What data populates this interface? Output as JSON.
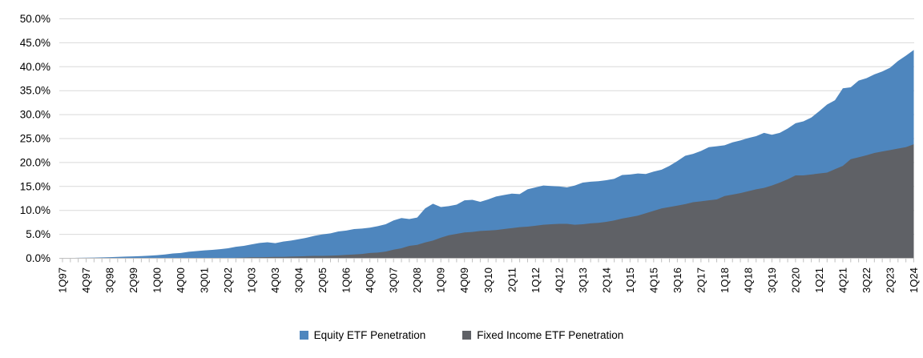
{
  "chart_data": {
    "type": "area",
    "title": "",
    "xlabel": "",
    "ylabel": "",
    "ylim": [
      0,
      50
    ],
    "grid": true,
    "legend_position": "bottom",
    "colors": {
      "equity": "#4E86BE",
      "fixed_income": "#5F6166",
      "gridline": "#D9D9D9",
      "axis": "#BFBFBF",
      "label_text": "#000000"
    },
    "y_axis": {
      "tick_step": 5,
      "tick_labels": [
        "0.0%",
        "5.0%",
        "10.0%",
        "15.0%",
        "20.0%",
        "25.0%",
        "30.0%",
        "35.0%",
        "40.0%",
        "45.0%",
        "50.0%"
      ]
    },
    "x_axis": {
      "label_every": 3,
      "tick_labels": [
        "1Q97",
        "4Q97",
        "3Q98",
        "2Q99",
        "1Q00",
        "4Q00",
        "3Q01",
        "2Q02",
        "1Q03",
        "4Q03",
        "3Q04",
        "2Q05",
        "1Q06",
        "4Q06",
        "3Q07",
        "2Q08",
        "1Q09",
        "4Q09",
        "3Q10",
        "2Q11",
        "1Q12",
        "4Q12",
        "3Q13",
        "2Q14",
        "1Q15",
        "4Q15",
        "3Q16",
        "2Q17",
        "1Q18",
        "4Q18",
        "3Q19",
        "2Q20",
        "1Q21",
        "4Q21",
        "3Q22",
        "2Q23",
        "1Q24"
      ]
    },
    "x": [
      "1Q97",
      "2Q97",
      "3Q97",
      "4Q97",
      "1Q98",
      "2Q98",
      "3Q98",
      "4Q98",
      "1Q99",
      "2Q99",
      "3Q99",
      "4Q99",
      "1Q00",
      "2Q00",
      "3Q00",
      "4Q00",
      "1Q01",
      "2Q01",
      "3Q01",
      "4Q01",
      "1Q02",
      "2Q02",
      "3Q02",
      "4Q02",
      "1Q03",
      "2Q03",
      "3Q03",
      "4Q03",
      "1Q04",
      "2Q04",
      "3Q04",
      "4Q04",
      "1Q05",
      "2Q05",
      "3Q05",
      "4Q05",
      "1Q06",
      "2Q06",
      "3Q06",
      "4Q06",
      "1Q07",
      "2Q07",
      "3Q07",
      "4Q07",
      "1Q08",
      "2Q08",
      "3Q08",
      "4Q08",
      "1Q09",
      "2Q09",
      "3Q09",
      "4Q09",
      "1Q10",
      "2Q10",
      "3Q10",
      "4Q10",
      "1Q11",
      "2Q11",
      "3Q11",
      "4Q11",
      "1Q12",
      "2Q12",
      "3Q12",
      "4Q12",
      "1Q13",
      "2Q13",
      "3Q13",
      "4Q13",
      "1Q14",
      "2Q14",
      "3Q14",
      "4Q14",
      "1Q15",
      "2Q15",
      "3Q15",
      "4Q15",
      "1Q16",
      "2Q16",
      "3Q16",
      "4Q16",
      "1Q17",
      "2Q17",
      "3Q17",
      "4Q17",
      "1Q18",
      "2Q18",
      "3Q18",
      "4Q18",
      "1Q19",
      "2Q19",
      "3Q19",
      "4Q19",
      "1Q20",
      "2Q20",
      "3Q20",
      "4Q20",
      "1Q21",
      "2Q21",
      "3Q21",
      "4Q21",
      "1Q22",
      "2Q22",
      "3Q22",
      "4Q22",
      "1Q23",
      "2Q23",
      "3Q23",
      "4Q23",
      "1Q24"
    ],
    "series": [
      {
        "name": "Equity ETF Penetration",
        "color": "#4E86BE",
        "values": [
          0.05,
          0.07,
          0.1,
          0.12,
          0.15,
          0.18,
          0.22,
          0.3,
          0.35,
          0.4,
          0.45,
          0.55,
          0.65,
          0.8,
          1.0,
          1.1,
          1.35,
          1.5,
          1.65,
          1.75,
          1.9,
          2.1,
          2.4,
          2.6,
          2.9,
          3.2,
          3.35,
          3.15,
          3.5,
          3.7,
          4.0,
          4.3,
          4.7,
          5.0,
          5.2,
          5.6,
          5.8,
          6.1,
          6.2,
          6.4,
          6.7,
          7.1,
          7.9,
          8.4,
          8.2,
          8.5,
          10.4,
          11.4,
          10.7,
          10.9,
          11.2,
          12.1,
          12.2,
          11.8,
          12.3,
          12.9,
          13.2,
          13.5,
          13.4,
          14.4,
          14.8,
          15.2,
          15.1,
          15.0,
          14.8,
          15.2,
          15.8,
          16.0,
          16.1,
          16.3,
          16.6,
          17.4,
          17.5,
          17.7,
          17.6,
          18.1,
          18.5,
          19.3,
          20.3,
          21.4,
          21.8,
          22.4,
          23.2,
          23.4,
          23.6,
          24.2,
          24.6,
          25.1,
          25.5,
          26.2,
          25.8,
          26.2,
          27.1,
          28.2,
          28.6,
          29.4,
          30.7,
          32.1,
          33.0,
          35.5,
          35.7,
          37.1,
          37.6,
          38.4,
          39.0,
          39.8,
          41.2,
          42.3,
          43.5
        ]
      },
      {
        "name": "Fixed Income ETF Penetration",
        "color": "#5F6166",
        "values": [
          0,
          0,
          0,
          0,
          0,
          0,
          0,
          0,
          0,
          0,
          0,
          0,
          0,
          0,
          0,
          0,
          0,
          0,
          0,
          0,
          0,
          0,
          0.1,
          0.15,
          0.2,
          0.2,
          0.25,
          0.3,
          0.3,
          0.35,
          0.4,
          0.45,
          0.5,
          0.5,
          0.55,
          0.6,
          0.7,
          0.8,
          0.9,
          1.1,
          1.2,
          1.4,
          1.8,
          2.1,
          2.6,
          2.8,
          3.3,
          3.7,
          4.3,
          4.8,
          5.1,
          5.4,
          5.5,
          5.7,
          5.8,
          5.9,
          6.1,
          6.3,
          6.5,
          6.6,
          6.8,
          7.0,
          7.1,
          7.2,
          7.2,
          7.0,
          7.1,
          7.3,
          7.4,
          7.6,
          7.9,
          8.3,
          8.6,
          8.9,
          9.4,
          9.9,
          10.4,
          10.7,
          11.0,
          11.3,
          11.7,
          11.9,
          12.1,
          12.3,
          13.0,
          13.3,
          13.6,
          14.0,
          14.4,
          14.7,
          15.2,
          15.8,
          16.5,
          17.3,
          17.3,
          17.5,
          17.7,
          17.9,
          18.6,
          19.3,
          20.7,
          21.1,
          21.5,
          22.0,
          22.3,
          22.6,
          22.9,
          23.2,
          23.8
        ]
      }
    ]
  }
}
